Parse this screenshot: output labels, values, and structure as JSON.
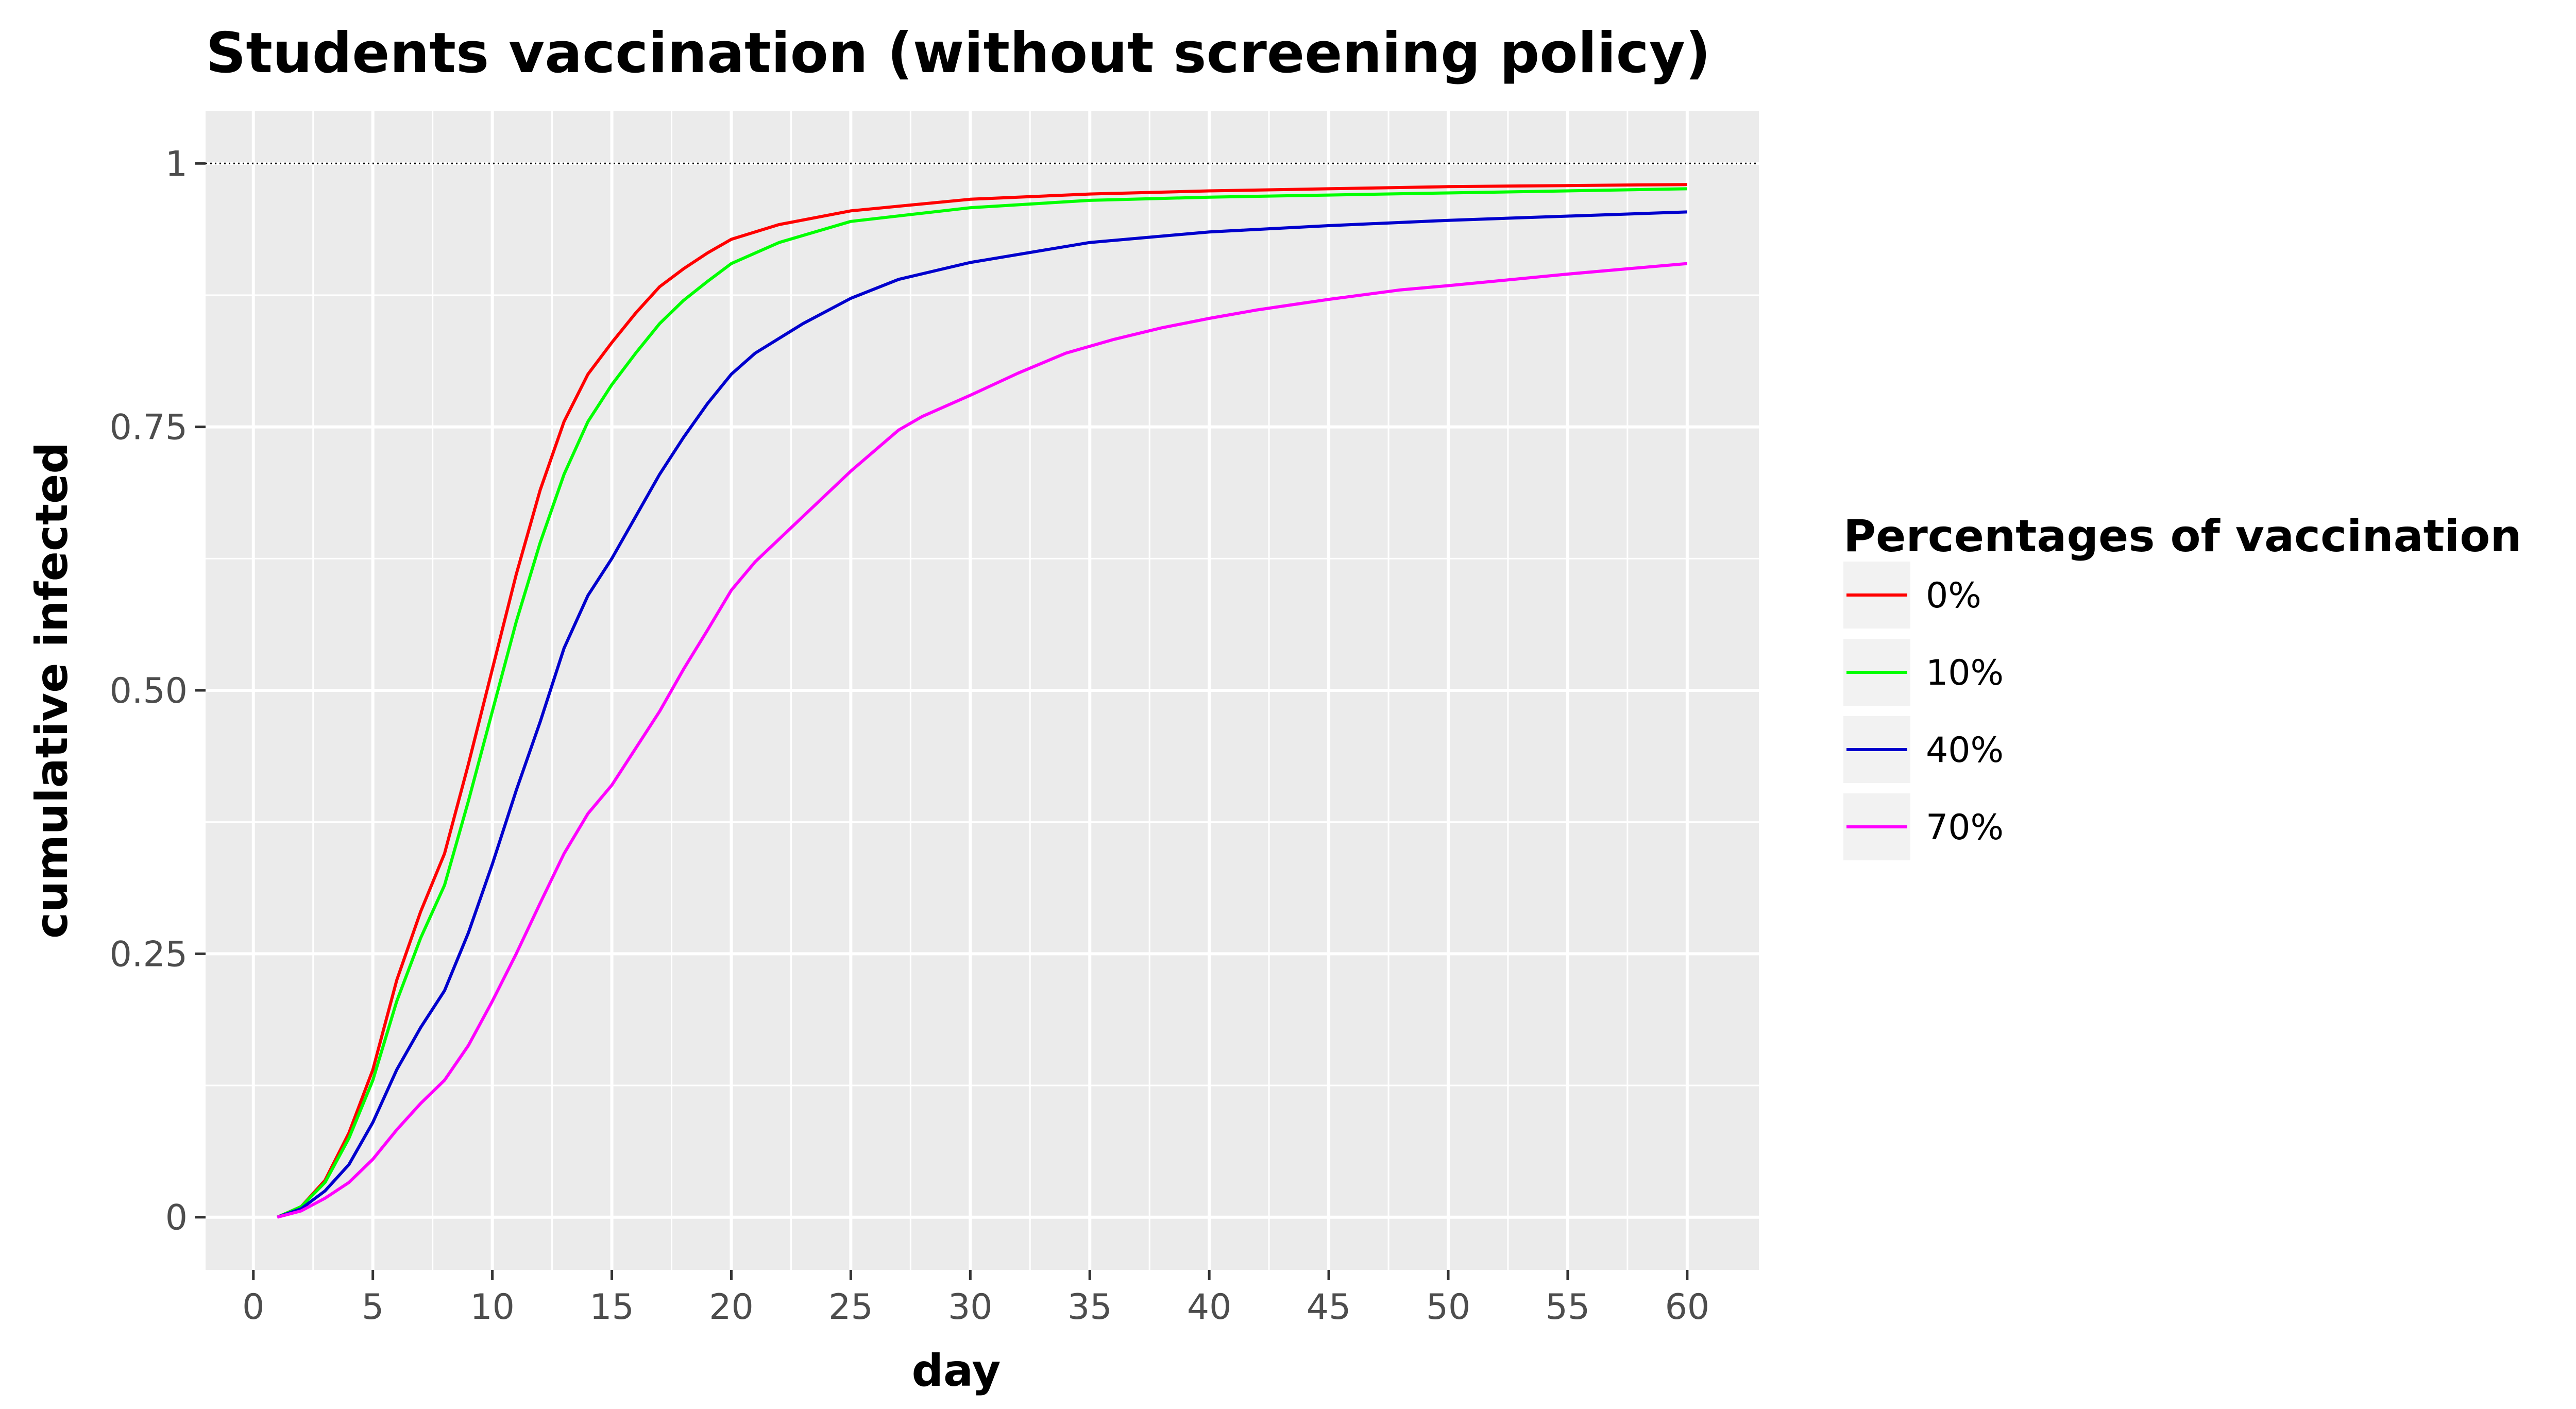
{
  "chart_data": {
    "type": "line",
    "title": "Students vaccination (without screening policy)",
    "xlabel": "day",
    "ylabel": "cumulative infected",
    "xlim": [
      -2,
      63
    ],
    "ylim": [
      -0.05,
      1.05
    ],
    "x_ticks": [
      0,
      5,
      10,
      15,
      20,
      25,
      30,
      35,
      40,
      45,
      50,
      55,
      60
    ],
    "x_tick_labels": [
      "0",
      "5",
      "10",
      "15",
      "20",
      "25",
      "30",
      "35",
      "40",
      "45",
      "50",
      "55",
      "60"
    ],
    "y_ticks": [
      0,
      0.25,
      0.5,
      0.75,
      1
    ],
    "y_tick_labels": [
      "0",
      "0.25",
      "0.50",
      "0.75",
      "1"
    ],
    "reference_line": {
      "y": 1,
      "style": "dotted",
      "color": "#000000"
    },
    "grid": true,
    "panel_background": "#ebebeb",
    "grid_color": "#ffffff",
    "legend": {
      "title": "Percentages of vaccination",
      "position": "right"
    },
    "series": [
      {
        "name": "0%",
        "color": "#ff0000",
        "x": [
          1,
          2,
          3,
          4,
          5,
          6,
          7,
          8,
          9,
          10,
          11,
          12,
          13,
          14,
          15,
          16,
          17,
          18,
          19,
          20,
          22,
          25,
          30,
          35,
          40,
          45,
          50,
          55,
          60
        ],
        "y": [
          0,
          0.01,
          0.035,
          0.08,
          0.14,
          0.225,
          0.29,
          0.345,
          0.43,
          0.52,
          0.61,
          0.69,
          0.755,
          0.8,
          0.83,
          0.858,
          0.883,
          0.9,
          0.915,
          0.928,
          0.942,
          0.955,
          0.966,
          0.971,
          0.974,
          0.976,
          0.978,
          0.979,
          0.98
        ]
      },
      {
        "name": "10%",
        "color": "#00ff00",
        "x": [
          1,
          2,
          3,
          4,
          5,
          6,
          7,
          8,
          9,
          10,
          11,
          12,
          13,
          14,
          15,
          16,
          17,
          18,
          19,
          20,
          22,
          25,
          30,
          35,
          40,
          45,
          50,
          55,
          60
        ],
        "y": [
          0,
          0.01,
          0.033,
          0.075,
          0.13,
          0.205,
          0.265,
          0.315,
          0.395,
          0.48,
          0.565,
          0.64,
          0.705,
          0.755,
          0.79,
          0.82,
          0.848,
          0.87,
          0.888,
          0.905,
          0.925,
          0.945,
          0.958,
          0.965,
          0.968,
          0.97,
          0.972,
          0.974,
          0.976
        ]
      },
      {
        "name": "40%",
        "color": "#0000cd",
        "x": [
          1,
          2,
          3,
          4,
          5,
          6,
          7,
          8,
          9,
          10,
          11,
          12,
          13,
          14,
          15,
          16,
          17,
          18,
          19,
          20,
          21,
          23,
          25,
          27,
          30,
          35,
          40,
          45,
          50,
          55,
          60
        ],
        "y": [
          0,
          0.008,
          0.025,
          0.05,
          0.09,
          0.14,
          0.18,
          0.215,
          0.27,
          0.335,
          0.405,
          0.47,
          0.54,
          0.59,
          0.625,
          0.665,
          0.705,
          0.74,
          0.772,
          0.8,
          0.82,
          0.848,
          0.872,
          0.89,
          0.906,
          0.925,
          0.935,
          0.941,
          0.946,
          0.95,
          0.954
        ]
      },
      {
        "name": "70%",
        "color": "#ff00ff",
        "x": [
          1,
          2,
          3,
          4,
          5,
          6,
          7,
          8,
          9,
          10,
          11,
          12,
          13,
          14,
          15,
          16,
          17,
          18,
          19,
          20,
          21,
          23,
          25,
          27,
          28,
          30,
          32,
          34,
          36,
          38,
          40,
          42,
          45,
          48,
          50,
          55,
          60
        ],
        "y": [
          0,
          0.006,
          0.018,
          0.033,
          0.055,
          0.083,
          0.108,
          0.13,
          0.163,
          0.205,
          0.25,
          0.298,
          0.345,
          0.383,
          0.41,
          0.445,
          0.48,
          0.52,
          0.557,
          0.595,
          0.622,
          0.665,
          0.708,
          0.747,
          0.76,
          0.78,
          0.801,
          0.82,
          0.833,
          0.844,
          0.853,
          0.861,
          0.871,
          0.88,
          0.884,
          0.895,
          0.905
        ]
      }
    ]
  }
}
